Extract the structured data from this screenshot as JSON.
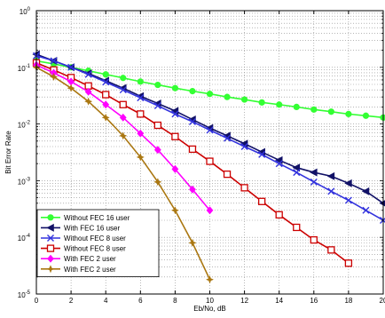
{
  "chart_data": {
    "type": "line",
    "title": "",
    "xlabel": "Eb/No, dB",
    "ylabel": "Bit Error Rate",
    "xlim": [
      0,
      20
    ],
    "ylim": [
      1e-05,
      1
    ],
    "yscale": "log",
    "grid": true,
    "legend_position": "bottom-left",
    "x_ticks": [
      "0",
      "2",
      "4",
      "6",
      "8",
      "10",
      "12",
      "14",
      "16",
      "18",
      "20"
    ],
    "y_ticks": [
      {
        "base": "10",
        "exp": "0",
        "value": 1
      },
      {
        "base": "10",
        "exp": "-1",
        "value": 0.1
      },
      {
        "base": "10",
        "exp": "-2",
        "value": 0.01
      },
      {
        "base": "10",
        "exp": "-3",
        "value": 0.001
      },
      {
        "base": "10",
        "exp": "-4",
        "value": 0.0001
      },
      {
        "base": "10",
        "exp": "-5",
        "value": 1e-05
      }
    ],
    "series": [
      {
        "name": "Without FEC 16 user",
        "color": "#33ff33",
        "marker": "circle",
        "x": [
          0,
          1,
          2,
          3,
          4,
          5,
          6,
          7,
          8,
          9,
          10,
          11,
          12,
          13,
          14,
          15,
          16,
          17,
          18,
          19,
          20
        ],
        "y": [
          0.13,
          0.115,
          0.1,
          0.087,
          0.075,
          0.065,
          0.056,
          0.049,
          0.043,
          0.038,
          0.034,
          0.03,
          0.027,
          0.024,
          0.022,
          0.02,
          0.018,
          0.0165,
          0.015,
          0.014,
          0.013
        ]
      },
      {
        "name": "With FEC 16 user",
        "color": "#111166",
        "marker": "triangle-left",
        "x": [
          0,
          1,
          2,
          3,
          4,
          5,
          6,
          7,
          8,
          9,
          10,
          11,
          12,
          13,
          14,
          15,
          16,
          17,
          18,
          19,
          20
        ],
        "y": [
          0.17,
          0.13,
          0.1,
          0.078,
          0.058,
          0.043,
          0.031,
          0.023,
          0.017,
          0.012,
          0.0085,
          0.0062,
          0.0045,
          0.0032,
          0.0023,
          0.0017,
          0.0014,
          0.0012,
          0.0009,
          0.00065,
          0.0004
        ]
      },
      {
        "name": "Without FEC 8 user",
        "color": "#3333dd",
        "marker": "x",
        "x": [
          0,
          1,
          2,
          3,
          4,
          5,
          6,
          7,
          8,
          9,
          10,
          11,
          12,
          13,
          14,
          15,
          16,
          17,
          18,
          19,
          20
        ],
        "y": [
          0.16,
          0.13,
          0.1,
          0.075,
          0.055,
          0.04,
          0.029,
          0.021,
          0.015,
          0.011,
          0.0078,
          0.0056,
          0.004,
          0.0029,
          0.002,
          0.0014,
          0.00095,
          0.00065,
          0.00045,
          0.0003,
          0.0002
        ]
      },
      {
        "name": "Without FEC 8 user",
        "color": "#cc0000",
        "marker": "square",
        "x": [
          0,
          1,
          2,
          3,
          4,
          5,
          6,
          7,
          8,
          9,
          10,
          11,
          12,
          13,
          14,
          15,
          16,
          17,
          18
        ],
        "y": [
          0.12,
          0.09,
          0.066,
          0.047,
          0.033,
          0.022,
          0.015,
          0.0095,
          0.006,
          0.0036,
          0.0022,
          0.0013,
          0.00075,
          0.00043,
          0.00025,
          0.00015,
          9e-05,
          6e-05,
          3.5e-05
        ]
      },
      {
        "name": "With FEC 2 user",
        "color": "#ff00ff",
        "marker": "diamond",
        "x": [
          0,
          1,
          2,
          3,
          4,
          5,
          6,
          7,
          8,
          9,
          10
        ],
        "y": [
          0.11,
          0.08,
          0.056,
          0.037,
          0.022,
          0.013,
          0.0068,
          0.0035,
          0.0016,
          0.0007,
          0.0003
        ]
      },
      {
        "name": "With FEC 2 user",
        "color": "#aa7711",
        "marker": "star",
        "x": [
          0,
          1,
          2,
          3,
          4,
          5,
          6,
          7,
          8,
          9,
          10
        ],
        "y": [
          0.1,
          0.068,
          0.043,
          0.025,
          0.013,
          0.0062,
          0.0026,
          0.00095,
          0.0003,
          8e-05,
          1.8e-05
        ]
      }
    ]
  }
}
